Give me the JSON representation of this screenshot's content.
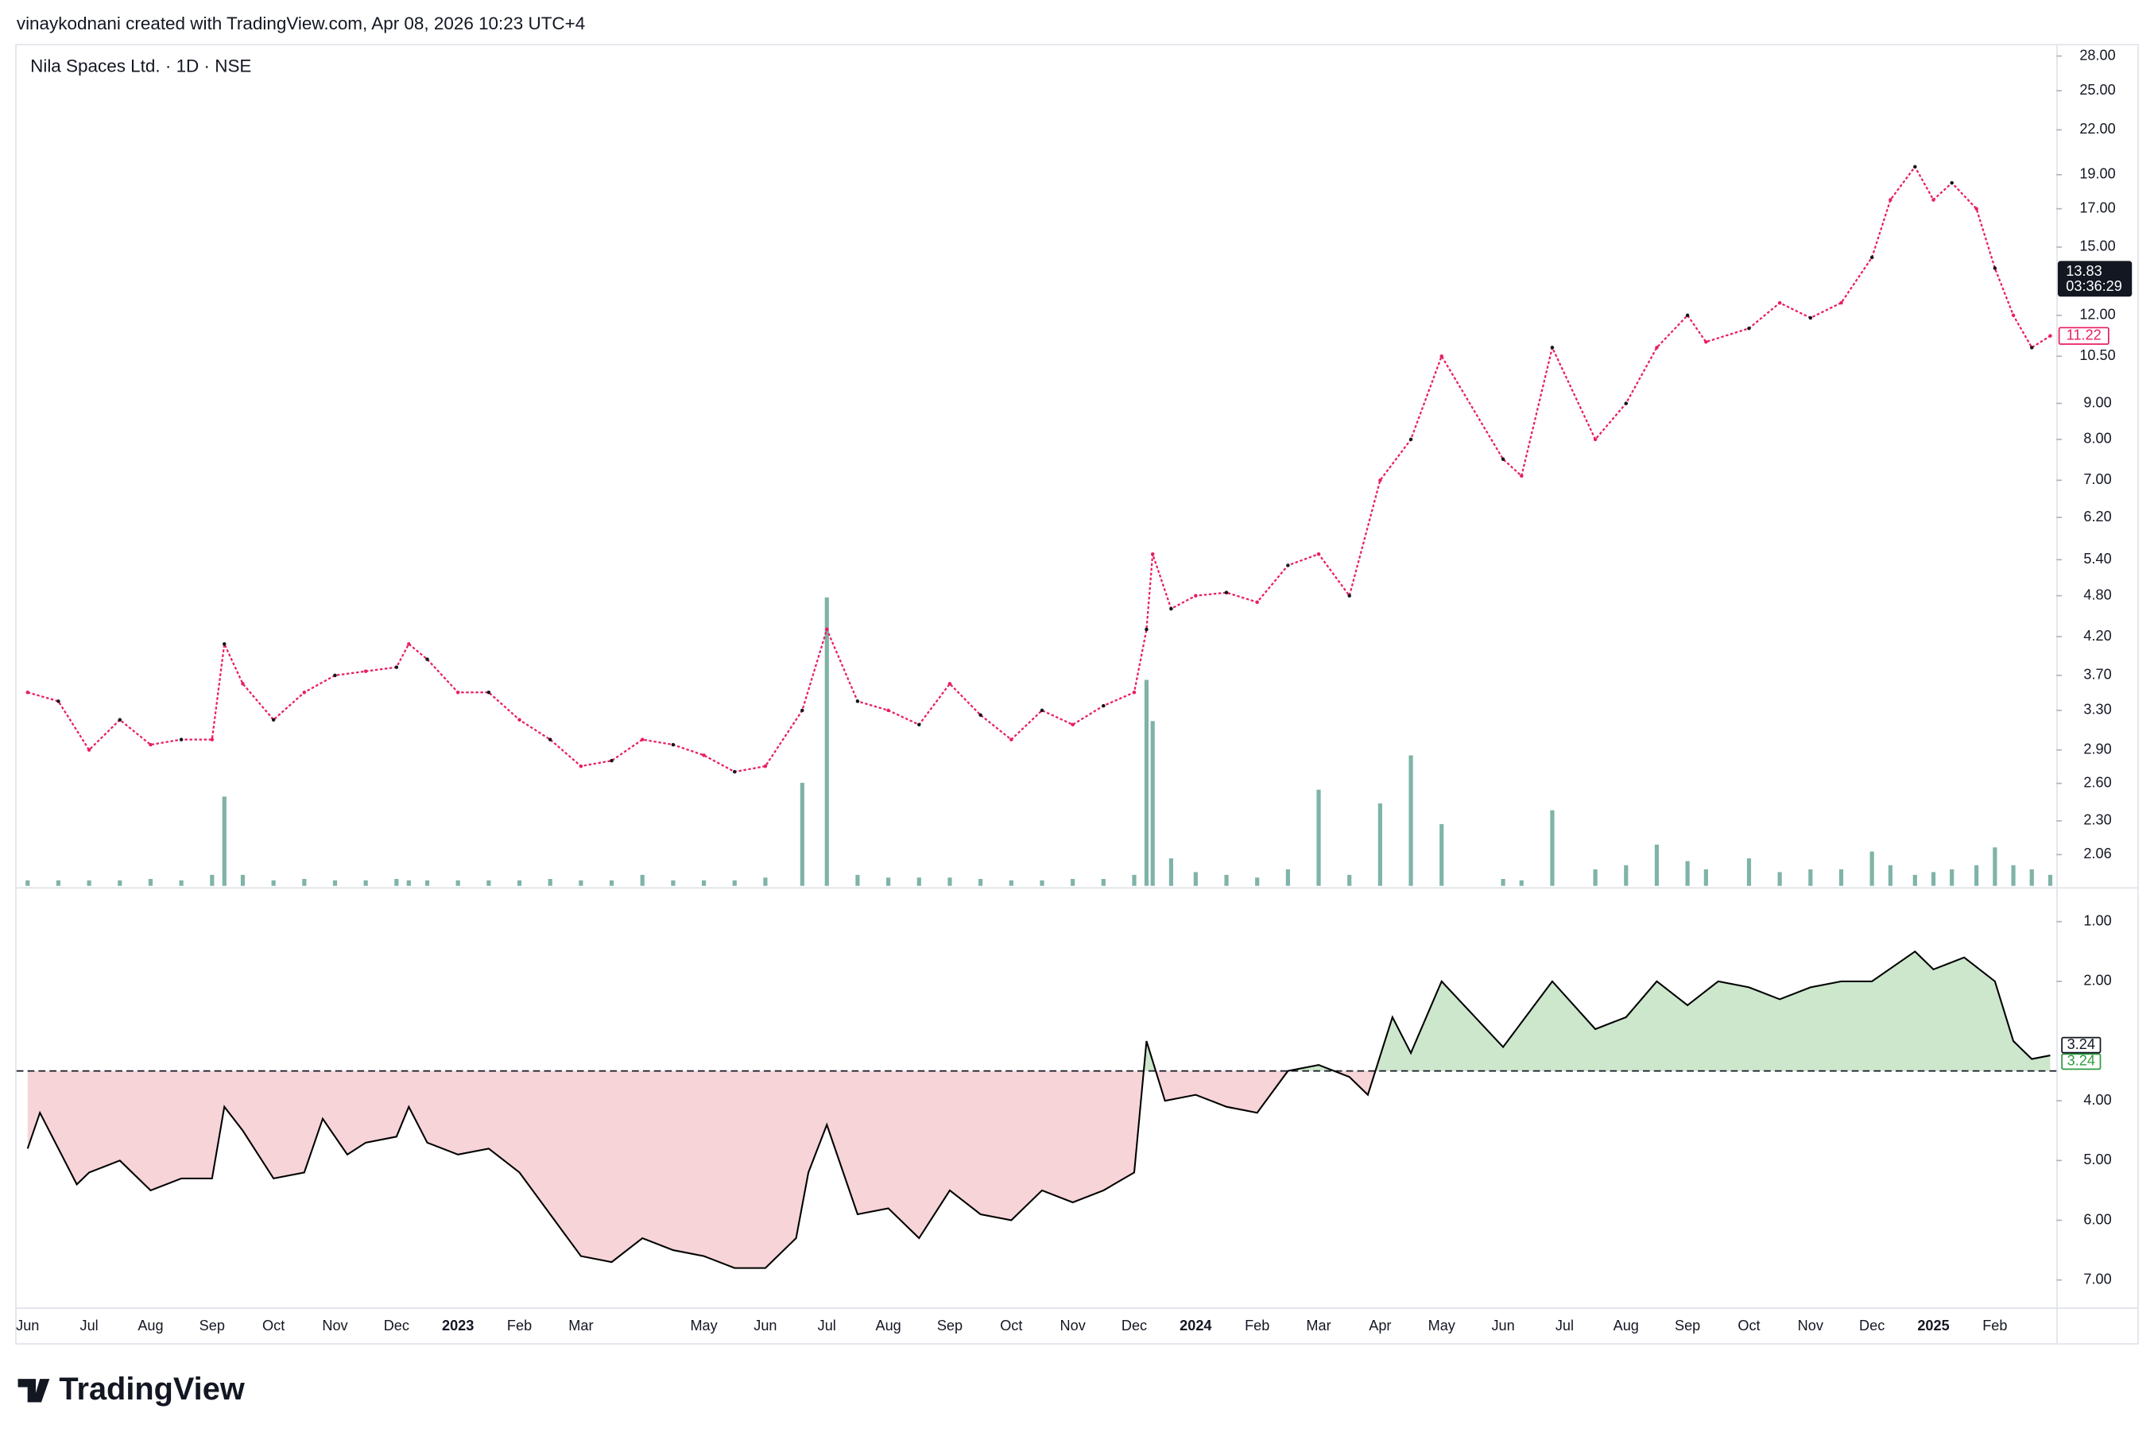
{
  "credit": "vinaykodnani created with TradingView.com, Apr 08, 2026 10:23 UTC+4",
  "brand": "TradingView",
  "chart_data": [
    {
      "type": "line",
      "title": "Nila Spaces Ltd. · 1D · NSE",
      "log_scale": true,
      "grid": false,
      "color": "#e91e63",
      "volume_color": "#7fb3a8",
      "ylim": [
        1.86,
        29
      ],
      "yticks": [
        {
          "value": 28,
          "label": "28.00"
        },
        {
          "value": 25,
          "label": "25.00"
        },
        {
          "value": 22,
          "label": "22.00"
        },
        {
          "value": 19,
          "label": "19.00"
        },
        {
          "value": 17,
          "label": "17.00"
        },
        {
          "value": 15,
          "label": "15.00"
        },
        {
          "value": 12,
          "label": "12.00"
        },
        {
          "value": 10.5,
          "label": "10.50"
        },
        {
          "value": 9,
          "label": "9.00"
        },
        {
          "value": 8,
          "label": "8.00"
        },
        {
          "value": 7,
          "label": "7.00"
        },
        {
          "value": 6.2,
          "label": "6.20"
        },
        {
          "value": 5.4,
          "label": "5.40"
        },
        {
          "value": 4.8,
          "label": "4.80"
        },
        {
          "value": 4.2,
          "label": "4.20"
        },
        {
          "value": 3.7,
          "label": "3.70"
        },
        {
          "value": 3.3,
          "label": "3.30"
        },
        {
          "value": 2.9,
          "label": "2.90"
        },
        {
          "value": 2.6,
          "label": "2.60"
        },
        {
          "value": 2.3,
          "label": "2.30"
        },
        {
          "value": 2.06,
          "label": "2.06"
        }
      ],
      "x": [
        0,
        0.5,
        1,
        1.5,
        2,
        2.5,
        3,
        3.2,
        3.5,
        4,
        4.5,
        5,
        5.5,
        6,
        6.2,
        6.5,
        7,
        7.5,
        8,
        8.5,
        9,
        9.5,
        10,
        10.5,
        11,
        11.5,
        12,
        12.6,
        13,
        13.5,
        14,
        14.5,
        15,
        15.5,
        16,
        16.5,
        17,
        17.5,
        18,
        18.2,
        18.3,
        18.6,
        19,
        19.5,
        20,
        20.5,
        21,
        21.5,
        22,
        22.5,
        23,
        24,
        24.3,
        24.8,
        25.5,
        26,
        26.5,
        27,
        27.3,
        28,
        28.5,
        29,
        29.5,
        30,
        30.3,
        30.7,
        31,
        31.3,
        31.7,
        32,
        32.3,
        32.6,
        32.9
      ],
      "values": [
        3.5,
        3.4,
        2.9,
        3.2,
        2.95,
        3.0,
        3.0,
        4.1,
        3.6,
        3.2,
        3.5,
        3.7,
        3.75,
        3.8,
        4.1,
        3.9,
        3.5,
        3.5,
        3.2,
        3.0,
        2.75,
        2.8,
        3.0,
        2.95,
        2.85,
        2.7,
        2.75,
        3.3,
        4.3,
        3.4,
        3.3,
        3.15,
        3.6,
        3.25,
        3.0,
        3.3,
        3.15,
        3.35,
        3.5,
        4.3,
        5.5,
        4.6,
        4.8,
        4.85,
        4.7,
        5.3,
        5.5,
        4.8,
        7.0,
        8.0,
        10.5,
        7.5,
        7.1,
        10.8,
        8.0,
        9.0,
        10.8,
        12.0,
        11.0,
        11.5,
        12.5,
        11.9,
        12.5,
        14.5,
        17.5,
        19.5,
        17.5,
        18.5,
        17.0,
        14.0,
        12.0,
        10.8,
        11.22
      ],
      "volume": [
        4,
        4,
        4,
        4,
        5,
        4,
        8,
        65,
        8,
        4,
        5,
        4,
        4,
        5,
        4,
        4,
        4,
        4,
        4,
        5,
        4,
        4,
        8,
        4,
        4,
        4,
        6,
        75,
        210,
        8,
        6,
        6,
        6,
        5,
        4,
        4,
        5,
        5,
        8,
        150,
        120,
        20,
        10,
        8,
        6,
        12,
        70,
        8,
        60,
        95,
        45,
        5,
        4,
        55,
        12,
        15,
        30,
        18,
        12,
        20,
        10,
        12,
        12,
        25,
        15,
        8,
        10,
        12,
        15,
        28,
        15,
        12,
        8
      ],
      "last_price": 13.83,
      "countdown": "03:36:29"
    },
    {
      "type": "baseline",
      "inverted": true,
      "grid": false,
      "line_color": "#000000",
      "top_fill_color": "#cce7cc",
      "bottom_fill_color": "#f7d4d8",
      "baseline": 3.5,
      "ylim": [
        0.47,
        7.46
      ],
      "yticks": [
        {
          "value": 1,
          "label": "1.00"
        },
        {
          "value": 2,
          "label": "2.00"
        },
        {
          "value": 4,
          "label": "4.00"
        },
        {
          "value": 5,
          "label": "5.00"
        },
        {
          "value": 6,
          "label": "6.00"
        },
        {
          "value": 7,
          "label": "7.00"
        }
      ],
      "xlim": [
        -0.18,
        33.0
      ],
      "xticks": [
        {
          "value": 0,
          "label": "Jun"
        },
        {
          "value": 1,
          "label": "Jul"
        },
        {
          "value": 2,
          "label": "Aug"
        },
        {
          "value": 3,
          "label": "Sep"
        },
        {
          "value": 4,
          "label": "Oct"
        },
        {
          "value": 5,
          "label": "Nov"
        },
        {
          "value": 6,
          "label": "Dec"
        },
        {
          "value": 7,
          "label": "2023"
        },
        {
          "value": 8,
          "label": "Feb"
        },
        {
          "value": 9,
          "label": "Mar"
        },
        {
          "value": 11,
          "label": "May"
        },
        {
          "value": 12,
          "label": "Jun"
        },
        {
          "value": 13,
          "label": "Jul"
        },
        {
          "value": 14,
          "label": "Aug"
        },
        {
          "value": 15,
          "label": "Sep"
        },
        {
          "value": 16,
          "label": "Oct"
        },
        {
          "value": 17,
          "label": "Nov"
        },
        {
          "value": 18,
          "label": "Dec"
        },
        {
          "value": 19,
          "label": "2024"
        },
        {
          "value": 20,
          "label": "Feb"
        },
        {
          "value": 21,
          "label": "Mar"
        },
        {
          "value": 22,
          "label": "Apr"
        },
        {
          "value": 23,
          "label": "May"
        },
        {
          "value": 24,
          "label": "Jun"
        },
        {
          "value": 25,
          "label": "Jul"
        },
        {
          "value": 26,
          "label": "Aug"
        },
        {
          "value": 27,
          "label": "Sep"
        },
        {
          "value": 28,
          "label": "Oct"
        },
        {
          "value": 29,
          "label": "Nov"
        },
        {
          "value": 30,
          "label": "Dec"
        },
        {
          "value": 31,
          "label": "2025"
        },
        {
          "value": 32,
          "label": "Feb"
        }
      ],
      "x": [
        0,
        0.2,
        0.8,
        1,
        1.5,
        2,
        2.5,
        3,
        3.2,
        3.5,
        4,
        4.5,
        4.8,
        5.2,
        5.5,
        6,
        6.2,
        6.5,
        7,
        7.5,
        8,
        8.5,
        9,
        9.5,
        10,
        10.5,
        11,
        11.5,
        12,
        12.5,
        12.7,
        13,
        13.5,
        14,
        14.5,
        15,
        15.5,
        16,
        16.5,
        17,
        17.5,
        18,
        18.2,
        18.5,
        19,
        19.5,
        20,
        20.5,
        21,
        21.5,
        21.8,
        22.2,
        22.5,
        23,
        24,
        24.8,
        25.5,
        26,
        26.5,
        27,
        27.5,
        28,
        28.5,
        29,
        29.5,
        30,
        30.7,
        31,
        31.5,
        32,
        32.3,
        32.6,
        32.9
      ],
      "values": [
        4.8,
        4.2,
        5.4,
        5.2,
        5.0,
        5.5,
        5.3,
        5.3,
        4.1,
        4.5,
        5.3,
        5.2,
        4.3,
        4.9,
        4.7,
        4.6,
        4.1,
        4.7,
        4.9,
        4.8,
        5.2,
        5.9,
        6.6,
        6.7,
        6.3,
        6.5,
        6.6,
        6.8,
        6.8,
        6.3,
        5.2,
        4.4,
        5.9,
        5.8,
        6.3,
        5.5,
        5.9,
        6.0,
        5.5,
        5.7,
        5.5,
        5.2,
        3.0,
        4.0,
        3.9,
        4.1,
        4.2,
        3.5,
        3.4,
        3.6,
        3.9,
        2.6,
        3.2,
        2.0,
        3.1,
        2.0,
        2.8,
        2.6,
        2.0,
        2.4,
        2.0,
        2.1,
        2.3,
        2.1,
        2.0,
        2.0,
        1.5,
        1.8,
        1.6,
        2.0,
        3.0,
        3.3,
        3.24
      ]
    }
  ]
}
